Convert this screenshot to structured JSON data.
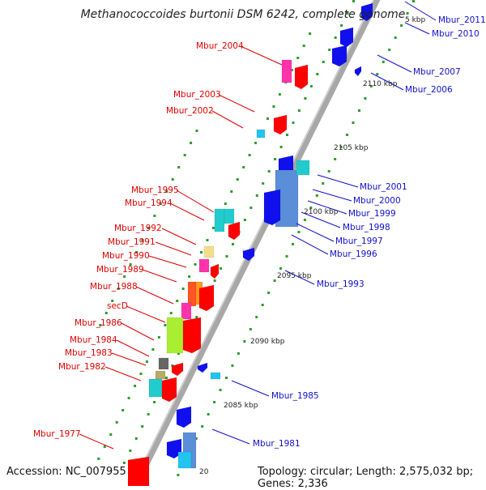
{
  "title": "Methanococcoides burtonii DSM 6242, complete genome",
  "footer": {
    "accession": "Accession: NC_007955",
    "topology": "Topology: circular; Length: 2,575,032 bp; Genes: 2,336"
  },
  "colors": {
    "forward": "#ff0000",
    "reverse": "#1010ee",
    "backbone": "#a8a8a8",
    "ticks": "#2e9a2e"
  },
  "kbp_labels": [
    "5 kbp",
    "2110 kbp",
    "2105 kbp",
    "2100 kbp",
    "2095 kbp",
    "2090 kbp",
    "2085 kbp",
    "20"
  ],
  "left_labels": [
    "Mbur_2004",
    "Mbur_2003",
    "Mbur_2002",
    "Mbur_1995",
    "Mbur_1994",
    "Mbur_1992",
    "Mbur_1991",
    "Mbur_1990",
    "Mbur_1989",
    "Mbur_1988",
    "secD",
    "Mbur_1986",
    "Mbur_1984",
    "Mbur_1983",
    "Mbur_1982",
    "Mbur_1977"
  ],
  "right_labels": [
    "Mbur_2011",
    "Mbur_2010",
    "Mbur_2007",
    "Mbur_2006",
    "Mbur_2001",
    "Mbur_2000",
    "Mbur_1999",
    "Mbur_1998",
    "Mbur_1997",
    "Mbur_1996",
    "Mbur_1993",
    "Mbur_1985",
    "Mbur_1981"
  ]
}
